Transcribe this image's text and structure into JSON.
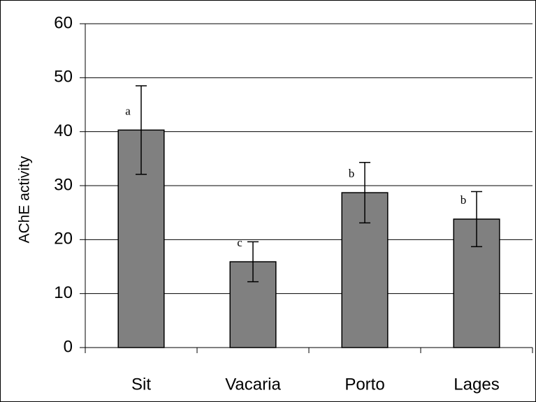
{
  "chart_data": {
    "type": "bar",
    "ylabel": "AChE activity",
    "categories": [
      "Sit",
      "Vacaria",
      "Porto",
      "Lages"
    ],
    "values": [
      40.3,
      15.9,
      28.7,
      23.8
    ],
    "errors": [
      8.2,
      3.7,
      5.6,
      5.1
    ],
    "annotations": [
      "a",
      "c",
      "b",
      "b"
    ],
    "color": "#808080",
    "ylim": [
      0,
      60
    ],
    "yticks": [
      0,
      10,
      20,
      30,
      40,
      50,
      60
    ],
    "grid": true
  }
}
